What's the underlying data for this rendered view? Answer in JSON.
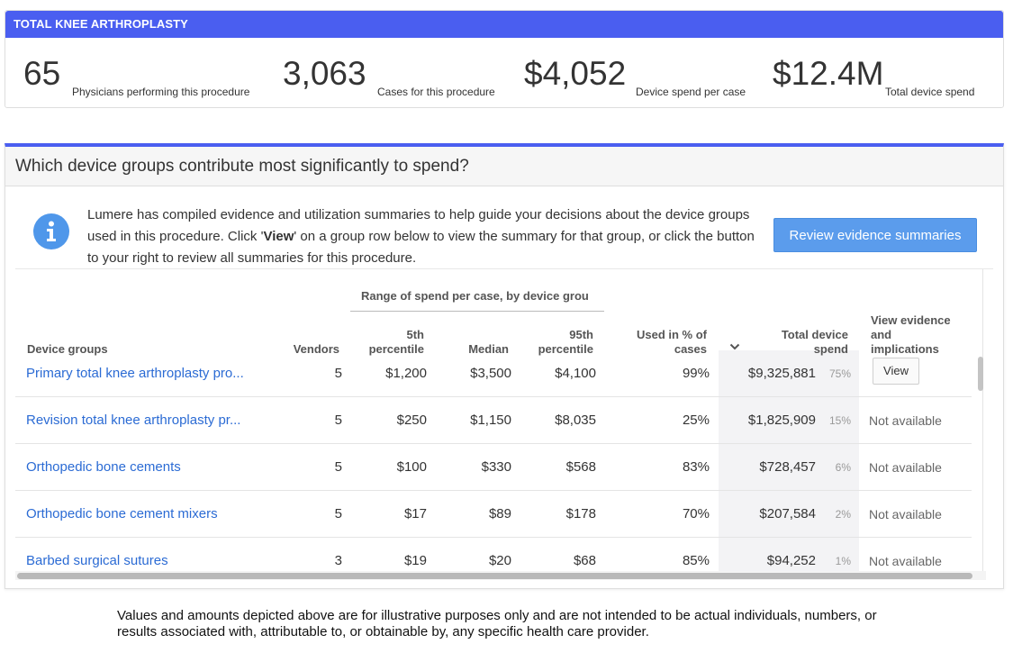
{
  "summary": {
    "title": "TOTAL KNEE ARTHROPLASTY",
    "stats": [
      {
        "value": "65",
        "label": "Physicians performing this procedure"
      },
      {
        "value": "3,063",
        "label": "Cases for this procedure"
      },
      {
        "value": "$4,052",
        "label": "Device spend per case"
      },
      {
        "value": "$12.4M",
        "label": "Total device spend"
      }
    ]
  },
  "panel": {
    "title": "Which device groups contribute most significantly to spend?",
    "info": {
      "text_1": "Lumere has compiled evidence and utilization summaries to help guide your decisions about the device groups used in this procedure. Click '",
      "text_bold": "View",
      "text_2": "' on a group row below to view the summary for that group, or click the button to your right to review all summaries for this procedure."
    },
    "review_button": "Review evidence summaries",
    "sort_icon": "chevron-down-icon"
  },
  "table": {
    "range_header": "Range of spend per case, by device grou",
    "headers": {
      "device_groups": "Device groups",
      "vendors": "Vendors",
      "p5_line1": "5th",
      "p5_line2": "percentile",
      "median": "Median",
      "p95_line1": "95th",
      "p95_line2": "percentile",
      "used_line1": "Used in % of",
      "used_line2": "cases",
      "total_line1": "Total device",
      "total_line2": "spend",
      "view_line1": "View evidence",
      "view_line2": "and",
      "view_line3": "implications"
    },
    "rows": [
      {
        "name": "Primary total knee arthroplasty pro...",
        "vendors": "5",
        "p5": "$1,200",
        "median": "$3,500",
        "p95": "$4,100",
        "used": "99%",
        "total": "$9,325,881",
        "share": "75%",
        "view": "View"
      },
      {
        "name": "Revision total knee arthroplasty pr...",
        "vendors": "5",
        "p5": "$250",
        "median": "$1,150",
        "p95": "$8,035",
        "used": "25%",
        "total": "$1,825,909",
        "share": "15%",
        "view": "Not available"
      },
      {
        "name": "Orthopedic bone cements",
        "vendors": "5",
        "p5": "$100",
        "median": "$330",
        "p95": "$568",
        "used": "83%",
        "total": "$728,457",
        "share": "6%",
        "view": "Not available"
      },
      {
        "name": "Orthopedic bone cement mixers",
        "vendors": "5",
        "p5": "$17",
        "median": "$89",
        "p95": "$178",
        "used": "70%",
        "total": "$207,584",
        "share": "2%",
        "view": "Not available"
      },
      {
        "name": "Barbed surgical sutures",
        "vendors": "3",
        "p5": "$19",
        "median": "$20",
        "p95": "$68",
        "used": "85%",
        "total": "$94,252",
        "share": "1%",
        "view": "Not available"
      }
    ]
  },
  "disclaimer": "Values and amounts depicted above are for illustrative purposes only and are not intended to be actual individuals, numbers, or results associated with, attributable to, or obtainable by, any specific health care provider.",
  "colors": {
    "accent": "#4a5ef0",
    "link": "#2b6bd4",
    "button": "#5b9cec"
  }
}
